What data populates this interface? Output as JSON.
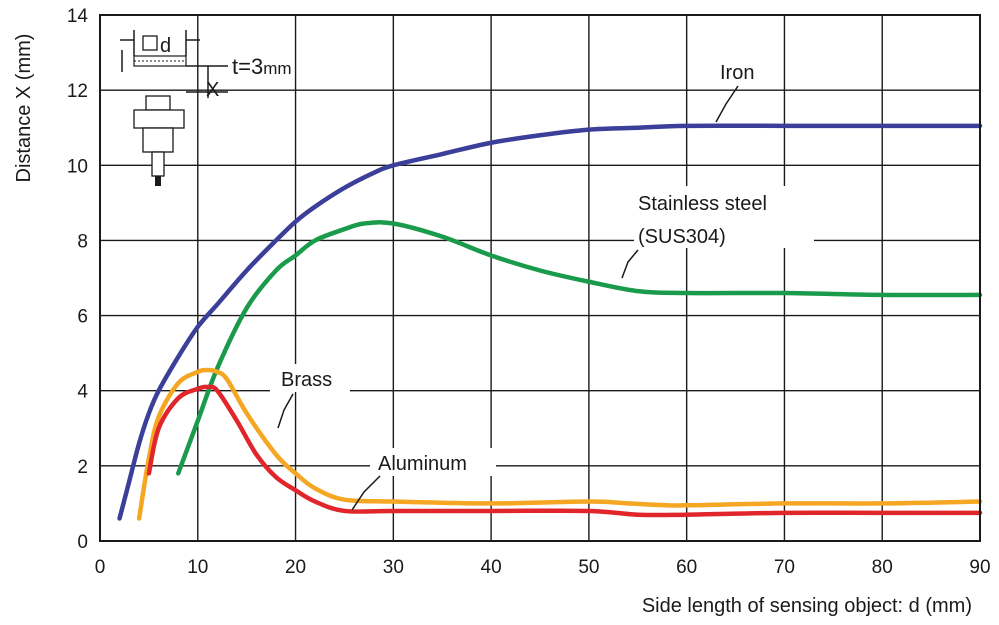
{
  "chart_data": {
    "type": "line",
    "xlabel": "Side length of sensing object: d (mm)",
    "ylabel": "Distance X (mm)",
    "xlim": [
      0,
      90
    ],
    "ylim": [
      0,
      14
    ],
    "xticks": [
      0,
      10,
      20,
      30,
      40,
      50,
      60,
      70,
      80,
      90
    ],
    "yticks": [
      0,
      2,
      4,
      6,
      8,
      10,
      12,
      14
    ],
    "grid": true,
    "series": [
      {
        "name": "Iron",
        "color": "#3b3f99",
        "x": [
          2,
          3,
          4,
          5,
          6,
          8,
          10,
          12,
          15,
          18,
          20,
          22,
          25,
          28,
          30,
          35,
          40,
          45,
          50,
          55,
          60,
          70,
          80,
          90
        ],
        "y": [
          0.6,
          1.6,
          2.6,
          3.4,
          4.0,
          4.9,
          5.7,
          6.3,
          7.2,
          8.0,
          8.5,
          8.9,
          9.4,
          9.8,
          10.0,
          10.3,
          10.6,
          10.8,
          10.95,
          11.0,
          11.05,
          11.05,
          11.05,
          11.05
        ]
      },
      {
        "name": "Stainless steel\n(SUS304)",
        "color": "#1a9b4b",
        "x": [
          8,
          10,
          12,
          15,
          18,
          20,
          22,
          25,
          27,
          30,
          35,
          40,
          45,
          50,
          55,
          60,
          70,
          80,
          90
        ],
        "y": [
          1.8,
          3.2,
          4.6,
          6.2,
          7.2,
          7.6,
          8.0,
          8.3,
          8.45,
          8.45,
          8.1,
          7.6,
          7.2,
          6.9,
          6.65,
          6.6,
          6.6,
          6.55,
          6.55
        ]
      },
      {
        "name": "Brass",
        "color": "#f5a623",
        "x": [
          4,
          5,
          6,
          8,
          10,
          11,
          12,
          13,
          15,
          18,
          20,
          22,
          25,
          30,
          40,
          50,
          54,
          58,
          60,
          70,
          80,
          90
        ],
        "y": [
          0.6,
          2.2,
          3.3,
          4.2,
          4.5,
          4.55,
          4.5,
          4.3,
          3.4,
          2.3,
          1.8,
          1.4,
          1.1,
          1.05,
          1.0,
          1.05,
          1.0,
          0.95,
          0.95,
          1.0,
          1.0,
          1.05
        ]
      },
      {
        "name": "Aluminum",
        "color": "#e0262a",
        "x": [
          5,
          6,
          8,
          10,
          11,
          12,
          14,
          16,
          18,
          20,
          22,
          25,
          30,
          40,
          50,
          55,
          60,
          70,
          80,
          90
        ],
        "y": [
          1.8,
          3.0,
          3.8,
          4.05,
          4.1,
          4.0,
          3.2,
          2.3,
          1.7,
          1.35,
          1.05,
          0.8,
          0.8,
          0.8,
          0.8,
          0.7,
          0.7,
          0.75,
          0.75,
          0.75
        ]
      }
    ],
    "annotations": {
      "iron": "Iron",
      "stainless_line1": "Stainless steel",
      "stainless_line2": "(SUS304)",
      "brass": "Brass",
      "aluminum": "Aluminum",
      "inset_d": "d",
      "inset_t": "t=3",
      "inset_t_unit": "mm",
      "inset_x": "X"
    }
  }
}
